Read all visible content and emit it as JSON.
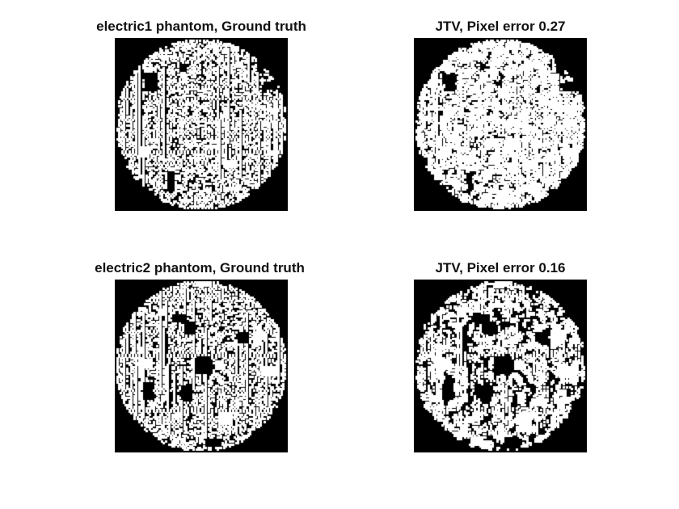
{
  "figure": {
    "panels": [
      {
        "title": "electric1 phantom, Ground truth",
        "kind": "ground-truth",
        "phantom": "electric1"
      },
      {
        "title": "JTV, Pixel error 0.27",
        "kind": "reconstruction",
        "phantom": "electric1",
        "pixel_error": 0.27
      },
      {
        "title": "electric2 phantom, Ground truth",
        "kind": "ground-truth",
        "phantom": "electric2"
      },
      {
        "title": "JTV, Pixel error 0.16",
        "kind": "reconstruction",
        "phantom": "electric2",
        "pixel_error": 0.16
      }
    ],
    "colors": {
      "background": "#000000",
      "foreground": "#ffffff"
    },
    "image_grid": 100
  }
}
